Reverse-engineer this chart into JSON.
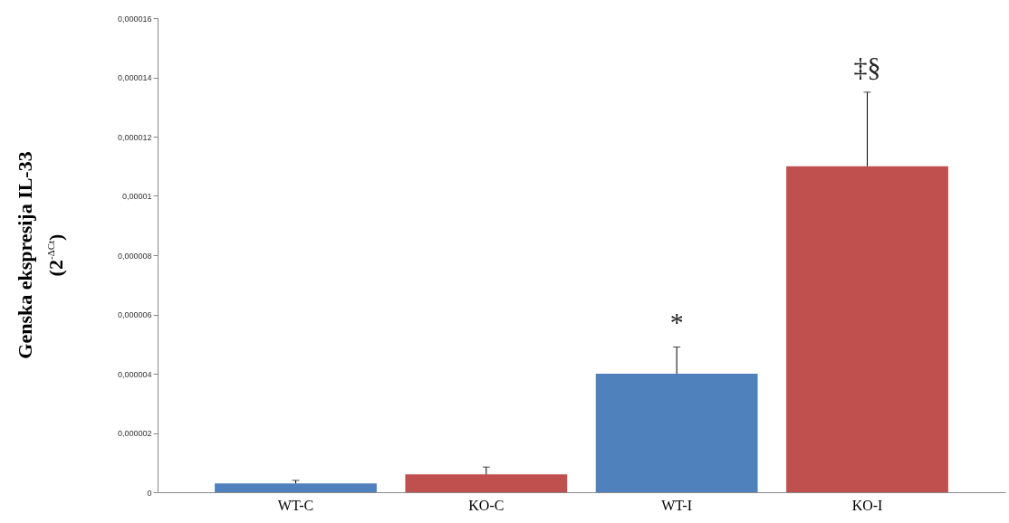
{
  "chart_data": {
    "type": "bar",
    "ylabel": "Genska ekspresija IL-33\n(2$^{-ΔCt}$)",
    "categories": [
      "WT-C",
      "KO-C",
      "WT-I",
      "KO-I"
    ],
    "values": [
      3e-07,
      6e-07,
      4e-06,
      1.1e-05
    ],
    "colors": [
      "#4f81bd",
      "#c0504d",
      "#4f81bd",
      "#c0504d"
    ],
    "errors": [
      [
        3e-07,
        4e-07
      ],
      [
        6e-07,
        8.5e-07
      ],
      [
        4e-06,
        4.9e-06
      ],
      [
        1.1e-05,
        1.35e-05
      ]
    ],
    "ylim": [
      0,
      1.6e-05
    ],
    "yticks": [
      0,
      {
        "value": 2e-06,
        "label": "0,000002"
      },
      {
        "value": 4e-06,
        "label": "0,000004"
      },
      {
        "value": 6e-06,
        "label": "0,000006"
      },
      {
        "value": 8e-06,
        "label": "0,000008"
      },
      {
        "value": 1e-05,
        "label": "0,00001"
      },
      {
        "value": 1.2e-05,
        "label": "0,000012"
      },
      {
        "value": 1.4e-05,
        "label": "0,000014"
      },
      {
        "value": 1.6e-05,
        "label": "0,000016"
      }
    ],
    "annotations": [
      {
        "text": "*",
        "x": "WT-I",
        "y": 4.9e-06
      },
      {
        "text": "‡§",
        "x": "KO-I",
        "y": 1.35e-05
      }
    ]
  }
}
